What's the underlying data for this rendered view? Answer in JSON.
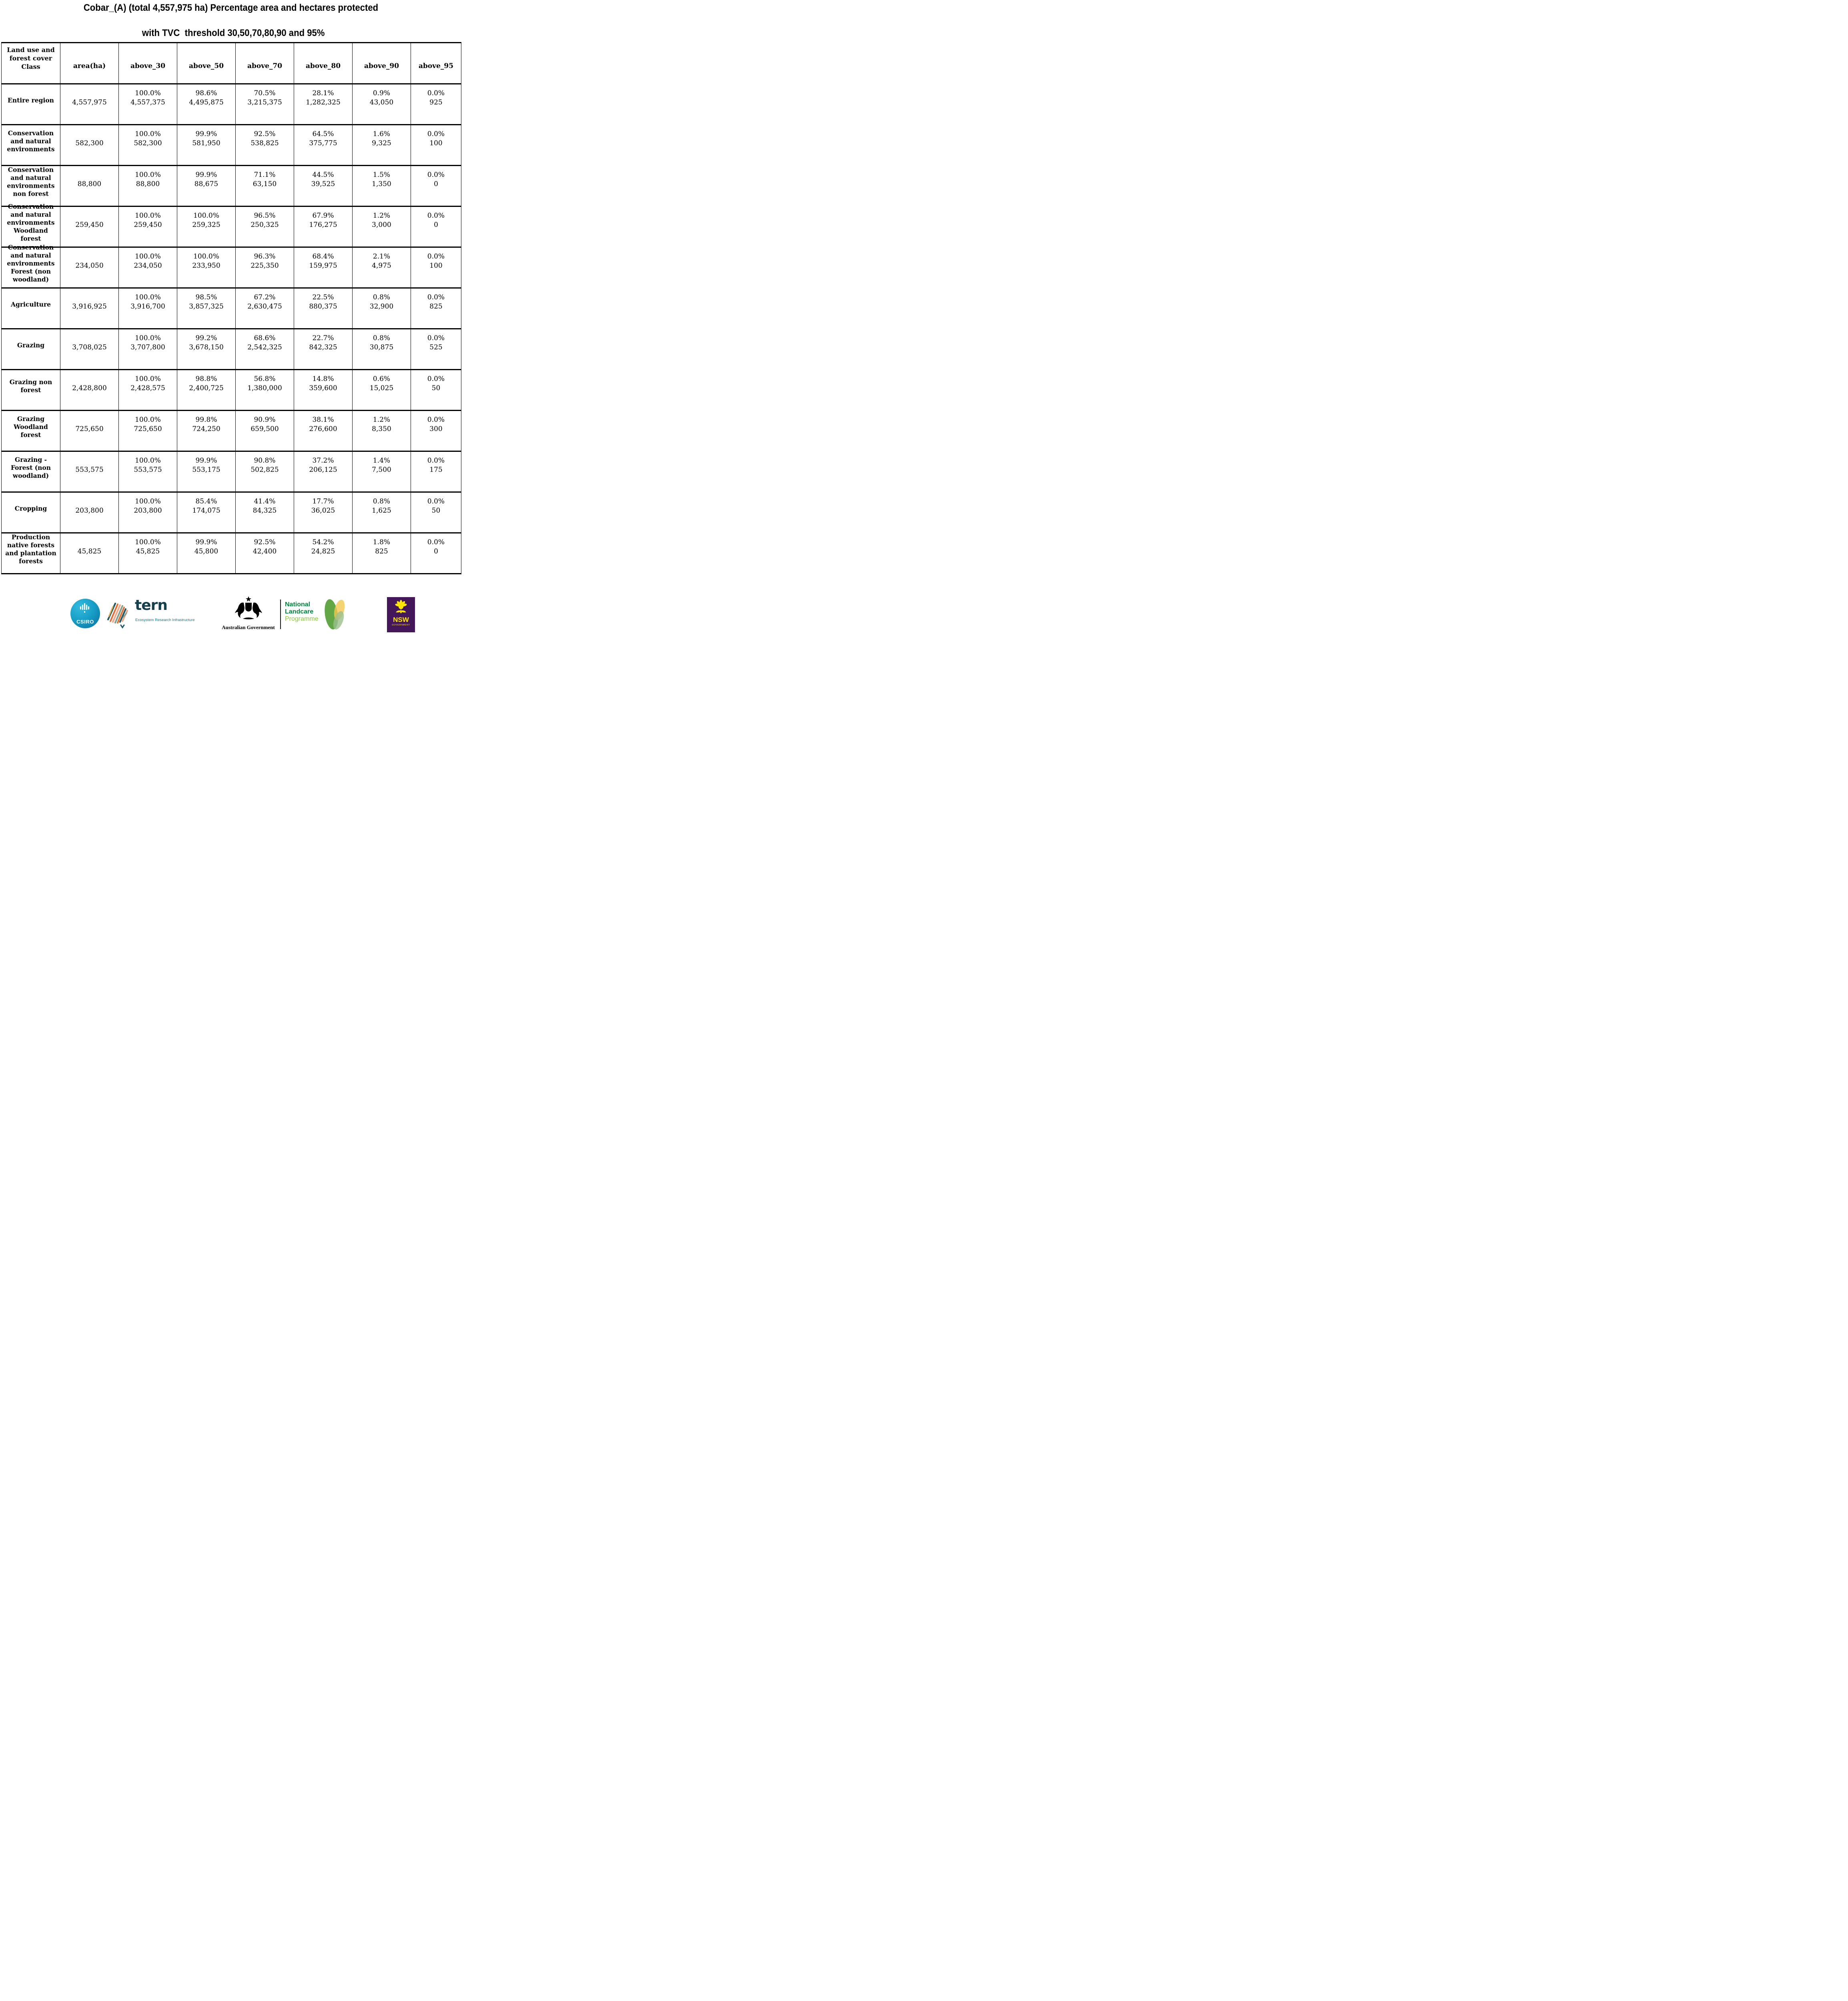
{
  "title": {
    "line1": "Cobar_(A) (total 4,557,975 ha) Percentage area and hectares protected",
    "line2": "with TVC  threshold 30,50,70,80,90 and 95%"
  },
  "table": {
    "header": {
      "class_col": "Land use and forest cover Class",
      "area_col": "area(ha)",
      "threshold_cols": [
        "above_30",
        "above_50",
        "above_70",
        "above_80",
        "above_90",
        "above_95"
      ]
    },
    "rows": [
      {
        "label": "Entire region",
        "area": "4,557,975",
        "values": [
          {
            "pct": "100.0%",
            "ha": "4,557,375"
          },
          {
            "pct": "98.6%",
            "ha": "4,495,875"
          },
          {
            "pct": "70.5%",
            "ha": "3,215,375"
          },
          {
            "pct": "28.1%",
            "ha": "1,282,325"
          },
          {
            "pct": "0.9%",
            "ha": "43,050"
          },
          {
            "pct": "0.0%",
            "ha": "925"
          }
        ]
      },
      {
        "label": "Conservation and natural environments",
        "area": "582,300",
        "values": [
          {
            "pct": "100.0%",
            "ha": "582,300"
          },
          {
            "pct": "99.9%",
            "ha": "581,950"
          },
          {
            "pct": "92.5%",
            "ha": "538,825"
          },
          {
            "pct": "64.5%",
            "ha": "375,775"
          },
          {
            "pct": "1.6%",
            "ha": "9,325"
          },
          {
            "pct": "0.0%",
            "ha": "100"
          }
        ]
      },
      {
        "label": "Conservation and natural environments non forest",
        "area": "88,800",
        "values": [
          {
            "pct": "100.0%",
            "ha": "88,800"
          },
          {
            "pct": "99.9%",
            "ha": "88,675"
          },
          {
            "pct": "71.1%",
            "ha": "63,150"
          },
          {
            "pct": "44.5%",
            "ha": "39,525"
          },
          {
            "pct": "1.5%",
            "ha": "1,350"
          },
          {
            "pct": "0.0%",
            "ha": "0"
          }
        ]
      },
      {
        "label": "Conservation and natural environments Woodland forest",
        "area": "259,450",
        "values": [
          {
            "pct": "100.0%",
            "ha": "259,450"
          },
          {
            "pct": "100.0%",
            "ha": "259,325"
          },
          {
            "pct": "96.5%",
            "ha": "250,325"
          },
          {
            "pct": "67.9%",
            "ha": "176,275"
          },
          {
            "pct": "1.2%",
            "ha": "3,000"
          },
          {
            "pct": "0.0%",
            "ha": "0"
          }
        ]
      },
      {
        "label": "Conservation and natural environments Forest (non woodland)",
        "area": "234,050",
        "values": [
          {
            "pct": "100.0%",
            "ha": "234,050"
          },
          {
            "pct": "100.0%",
            "ha": "233,950"
          },
          {
            "pct": "96.3%",
            "ha": "225,350"
          },
          {
            "pct": "68.4%",
            "ha": "159,975"
          },
          {
            "pct": "2.1%",
            "ha": "4,975"
          },
          {
            "pct": "0.0%",
            "ha": "100"
          }
        ]
      },
      {
        "label": "Agriculture",
        "area": "3,916,925",
        "values": [
          {
            "pct": "100.0%",
            "ha": "3,916,700"
          },
          {
            "pct": "98.5%",
            "ha": "3,857,325"
          },
          {
            "pct": "67.2%",
            "ha": "2,630,475"
          },
          {
            "pct": "22.5%",
            "ha": "880,375"
          },
          {
            "pct": "0.8%",
            "ha": "32,900"
          },
          {
            "pct": "0.0%",
            "ha": "825"
          }
        ]
      },
      {
        "label": "Grazing",
        "area": "3,708,025",
        "values": [
          {
            "pct": "100.0%",
            "ha": "3,707,800"
          },
          {
            "pct": "99.2%",
            "ha": "3,678,150"
          },
          {
            "pct": "68.6%",
            "ha": "2,542,325"
          },
          {
            "pct": "22.7%",
            "ha": "842,325"
          },
          {
            "pct": "0.8%",
            "ha": "30,875"
          },
          {
            "pct": "0.0%",
            "ha": "525"
          }
        ]
      },
      {
        "label": "Grazing non forest",
        "area": "2,428,800",
        "values": [
          {
            "pct": "100.0%",
            "ha": "2,428,575"
          },
          {
            "pct": "98.8%",
            "ha": "2,400,725"
          },
          {
            "pct": "56.8%",
            "ha": "1,380,000"
          },
          {
            "pct": "14.8%",
            "ha": "359,600"
          },
          {
            "pct": "0.6%",
            "ha": "15,025"
          },
          {
            "pct": "0.0%",
            "ha": "50"
          }
        ]
      },
      {
        "label": "Grazing Woodland forest",
        "area": "725,650",
        "values": [
          {
            "pct": "100.0%",
            "ha": "725,650"
          },
          {
            "pct": "99.8%",
            "ha": "724,250"
          },
          {
            "pct": "90.9%",
            "ha": "659,500"
          },
          {
            "pct": "38.1%",
            "ha": "276,600"
          },
          {
            "pct": "1.2%",
            "ha": "8,350"
          },
          {
            "pct": "0.0%",
            "ha": "300"
          }
        ]
      },
      {
        "label": "Grazing - Forest (non woodland)",
        "area": "553,575",
        "values": [
          {
            "pct": "100.0%",
            "ha": "553,575"
          },
          {
            "pct": "99.9%",
            "ha": "553,175"
          },
          {
            "pct": "90.8%",
            "ha": "502,825"
          },
          {
            "pct": "37.2%",
            "ha": "206,125"
          },
          {
            "pct": "1.4%",
            "ha": "7,500"
          },
          {
            "pct": "0.0%",
            "ha": "175"
          }
        ]
      },
      {
        "label": "Cropping",
        "area": "203,800",
        "values": [
          {
            "pct": "100.0%",
            "ha": "203,800"
          },
          {
            "pct": "85.4%",
            "ha": "174,075"
          },
          {
            "pct": "41.4%",
            "ha": "84,325"
          },
          {
            "pct": "17.7%",
            "ha": "36,025"
          },
          {
            "pct": "0.8%",
            "ha": "1,625"
          },
          {
            "pct": "0.0%",
            "ha": "50"
          }
        ]
      },
      {
        "label": "Production native forests and plantation forests",
        "area": "45,825",
        "values": [
          {
            "pct": "100.0%",
            "ha": "45,825"
          },
          {
            "pct": "99.9%",
            "ha": "45,800"
          },
          {
            "pct": "92.5%",
            "ha": "42,400"
          },
          {
            "pct": "54.2%",
            "ha": "24,825"
          },
          {
            "pct": "1.8%",
            "ha": "825"
          },
          {
            "pct": "0.0%",
            "ha": "0"
          }
        ]
      }
    ]
  },
  "footer": {
    "csiro": {
      "label": "CSIRO"
    },
    "tern": {
      "name": "tern",
      "tagline": "Ecosystem Research Infrastructure"
    },
    "aus_gov": {
      "label": "Australian Government"
    },
    "landcare": {
      "line1": "National",
      "line2": "Landcare",
      "line3": "Programme"
    },
    "nsw": {
      "name": "NSW",
      "sub": "GOVERNMENT"
    }
  },
  "colors": {
    "csiro_teal": "#18a0c8",
    "tern_dark": "#16404e",
    "tern_teal": "#0e7d8c",
    "landcare_green": "#00853e",
    "landcare_light_green": "#8cc63f",
    "nsw_purple": "#44175b",
    "nsw_yellow": "#ffe600",
    "table_border": "#000000"
  }
}
